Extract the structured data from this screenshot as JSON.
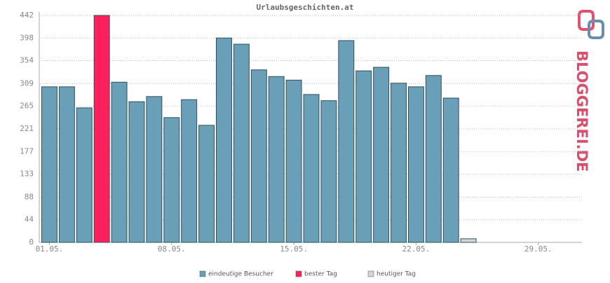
{
  "chart_data": {
    "type": "bar",
    "title": "Urlaubsgeschichten.at",
    "categories": [
      "01.05.",
      null,
      null,
      null,
      null,
      null,
      null,
      "08.05.",
      null,
      null,
      null,
      null,
      null,
      null,
      "15.05.",
      null,
      null,
      null,
      null,
      null,
      null,
      "22.05.",
      null,
      null,
      null,
      null,
      null,
      null,
      "29.05.",
      null,
      null
    ],
    "series": [
      {
        "name": "eindeutige Besucher",
        "color": "#6a9fb8",
        "values": [
          303,
          303,
          262,
          null,
          312,
          274,
          284,
          243,
          278,
          228,
          398,
          386,
          336,
          323,
          316,
          288,
          276,
          393,
          334,
          341,
          310,
          303,
          325,
          281,
          null,
          0,
          0,
          0,
          0,
          0,
          0
        ]
      },
      {
        "name": "bester Tag",
        "color": "#ff1f5a",
        "values": [
          null,
          null,
          null,
          442,
          null,
          null,
          null,
          null,
          null,
          null,
          null,
          null,
          null,
          null,
          null,
          null,
          null,
          null,
          null,
          null,
          null,
          null,
          null,
          null,
          null,
          null,
          null,
          null,
          null,
          null,
          null
        ]
      },
      {
        "name": "heutiger Tag",
        "color": "#d4d4d4",
        "values": [
          null,
          null,
          null,
          null,
          null,
          null,
          null,
          null,
          null,
          null,
          null,
          null,
          null,
          null,
          null,
          null,
          null,
          null,
          null,
          null,
          null,
          null,
          null,
          null,
          7,
          null,
          null,
          null,
          null,
          null,
          null
        ]
      }
    ],
    "ylim": [
      0,
      442
    ],
    "yticks": [
      0,
      44,
      88,
      133,
      177,
      221,
      265,
      309,
      354,
      398,
      442
    ],
    "grid": true,
    "logo": "BLOGGEREI.DE"
  }
}
